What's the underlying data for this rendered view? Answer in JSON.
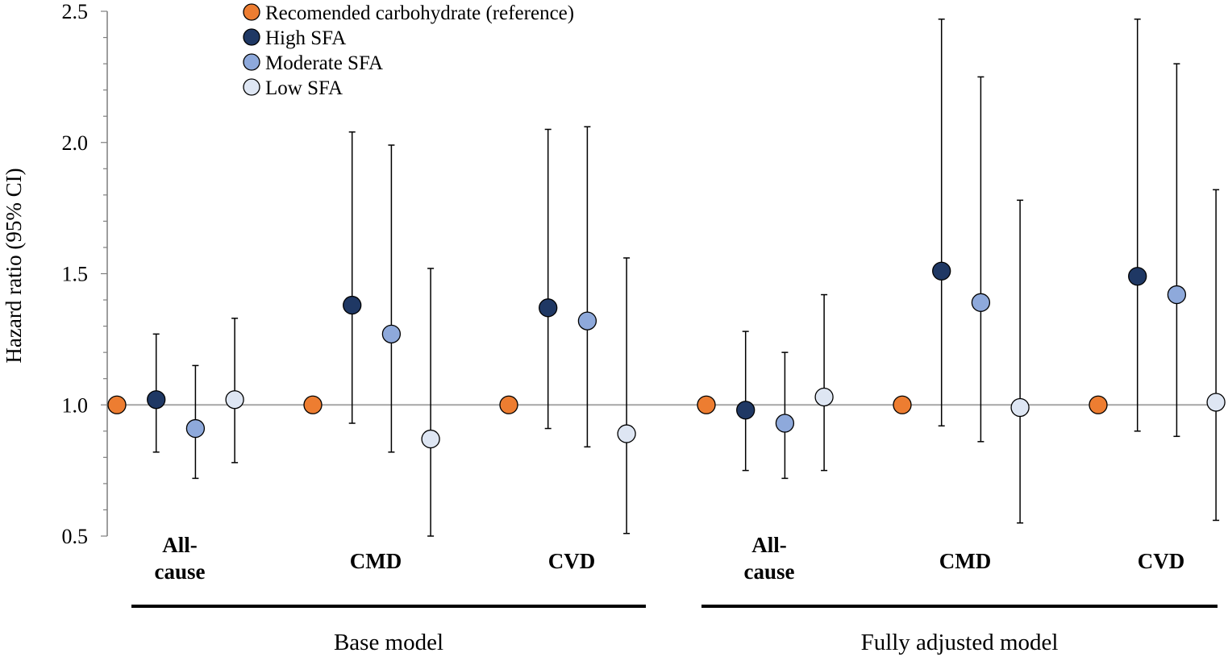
{
  "chart_data": {
    "type": "scatter",
    "subtype": "forest-plot-with-error-bars",
    "ylabel": "Hazard ratio (95% CI)",
    "ylim": [
      0.5,
      2.5
    ],
    "yticks": [
      "0.5",
      "1.0",
      "1.5",
      "2.0",
      "2.5"
    ],
    "ytick_values": [
      0.5,
      1.0,
      1.5,
      2.0,
      2.5
    ],
    "reference_line": 1.0,
    "legend_position": "top-left",
    "series": [
      {
        "name": "Recomended carbohydrate (reference)",
        "color": "#ED7D31"
      },
      {
        "name": "High SFA",
        "color": "#1F3864"
      },
      {
        "name": "Moderate SFA",
        "color": "#8EA9DB"
      },
      {
        "name": "Low SFA",
        "color": "#DEE6F3"
      }
    ],
    "groups": [
      {
        "model": "Base model",
        "categories": [
          {
            "label_lines": [
              "All-",
              "cause"
            ],
            "points": [
              {
                "hr": 1.0,
                "low": null,
                "high": null
              },
              {
                "hr": 1.02,
                "low": 0.82,
                "high": 1.27
              },
              {
                "hr": 0.91,
                "low": 0.72,
                "high": 1.15
              },
              {
                "hr": 1.02,
                "low": 0.78,
                "high": 1.33
              }
            ]
          },
          {
            "label_lines": [
              "CMD"
            ],
            "points": [
              {
                "hr": 1.0,
                "low": null,
                "high": null
              },
              {
                "hr": 1.38,
                "low": 0.93,
                "high": 2.04
              },
              {
                "hr": 1.27,
                "low": 0.82,
                "high": 1.99
              },
              {
                "hr": 0.87,
                "low": 0.5,
                "high": 1.52
              }
            ]
          },
          {
            "label_lines": [
              "CVD"
            ],
            "points": [
              {
                "hr": 1.0,
                "low": null,
                "high": null
              },
              {
                "hr": 1.37,
                "low": 0.91,
                "high": 2.05
              },
              {
                "hr": 1.32,
                "low": 0.84,
                "high": 2.06
              },
              {
                "hr": 0.89,
                "low": 0.51,
                "high": 1.56
              }
            ]
          }
        ]
      },
      {
        "model": "Fully adjusted model",
        "categories": [
          {
            "label_lines": [
              "All-",
              "cause"
            ],
            "points": [
              {
                "hr": 1.0,
                "low": null,
                "high": null
              },
              {
                "hr": 0.98,
                "low": 0.75,
                "high": 1.28
              },
              {
                "hr": 0.93,
                "low": 0.72,
                "high": 1.2
              },
              {
                "hr": 1.03,
                "low": 0.75,
                "high": 1.42
              }
            ]
          },
          {
            "label_lines": [
              "CMD"
            ],
            "points": [
              {
                "hr": 1.0,
                "low": null,
                "high": null
              },
              {
                "hr": 1.51,
                "low": 0.92,
                "high": 2.47
              },
              {
                "hr": 1.39,
                "low": 0.86,
                "high": 2.25
              },
              {
                "hr": 0.99,
                "low": 0.55,
                "high": 1.78
              }
            ]
          },
          {
            "label_lines": [
              "CVD"
            ],
            "points": [
              {
                "hr": 1.0,
                "low": null,
                "high": null
              },
              {
                "hr": 1.49,
                "low": 0.9,
                "high": 2.47
              },
              {
                "hr": 1.42,
                "low": 0.88,
                "high": 2.3
              },
              {
                "hr": 1.01,
                "low": 0.56,
                "high": 1.82
              }
            ]
          }
        ]
      }
    ]
  }
}
